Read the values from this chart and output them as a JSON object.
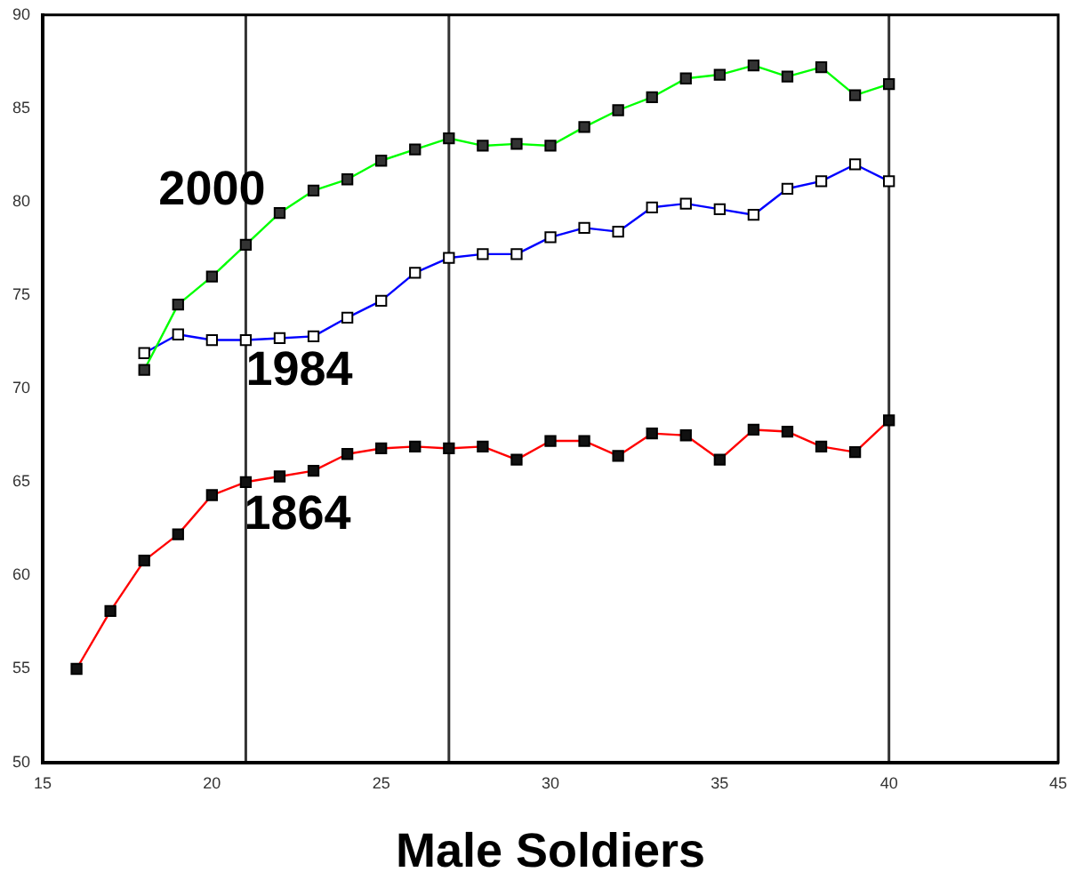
{
  "chart_data": {
    "type": "line",
    "xlabel": "Male Soldiers",
    "xlim": [
      15,
      45
    ],
    "xticks": [
      15,
      20,
      25,
      30,
      35,
      40,
      45
    ],
    "ylim": [
      50,
      90
    ],
    "yticks": [
      50,
      55,
      60,
      65,
      70,
      75,
      80,
      85,
      90
    ],
    "grid": false,
    "legend": false,
    "marker": "square",
    "line_style": "solid",
    "ref_lines": [
      {
        "axis": "x",
        "value": 21,
        "color": "#333333"
      },
      {
        "axis": "x",
        "value": 27,
        "color": "#333333"
      },
      {
        "axis": "x",
        "value": 40,
        "color": "#333333"
      }
    ],
    "series": [
      {
        "name": "2000",
        "color": "#00ff00",
        "x": [
          18,
          19,
          20,
          21,
          22,
          23,
          24,
          25,
          26,
          27,
          28,
          29,
          30,
          31,
          32,
          33,
          34,
          35,
          36,
          37,
          38,
          39,
          40
        ],
        "values": [
          71.0,
          74.5,
          76.0,
          77.7,
          79.4,
          80.6,
          81.2,
          82.2,
          82.8,
          83.4,
          83.0,
          83.1,
          83.0,
          84.0,
          84.9,
          85.6,
          86.6,
          86.8,
          87.3,
          86.7,
          87.2,
          85.7,
          86.3
        ]
      },
      {
        "name": "1984",
        "color": "#0000ff",
        "x": [
          18,
          19,
          20,
          21,
          22,
          23,
          24,
          25,
          26,
          27,
          28,
          29,
          30,
          31,
          32,
          33,
          34,
          35,
          36,
          37,
          38,
          39,
          40
        ],
        "values": [
          71.9,
          72.9,
          72.6,
          72.6,
          72.7,
          72.8,
          73.8,
          74.7,
          76.2,
          77.0,
          77.2,
          77.2,
          78.1,
          78.6,
          78.4,
          79.7,
          79.9,
          79.6,
          79.3,
          80.7,
          81.1,
          82.0,
          81.1
        ]
      },
      {
        "name": "1864",
        "color": "#ff0000",
        "x": [
          16,
          17,
          18,
          19,
          20,
          21,
          22,
          23,
          24,
          25,
          26,
          27,
          28,
          29,
          30,
          31,
          32,
          33,
          34,
          35,
          36,
          37,
          38,
          39,
          40
        ],
        "values": [
          55.0,
          58.1,
          60.8,
          62.2,
          64.3,
          65.0,
          65.3,
          65.6,
          66.5,
          66.8,
          66.9,
          66.8,
          66.9,
          66.2,
          67.2,
          67.2,
          66.4,
          67.6,
          67.5,
          66.2,
          67.8,
          67.7,
          66.9,
          66.6,
          68.3
        ]
      }
    ]
  }
}
